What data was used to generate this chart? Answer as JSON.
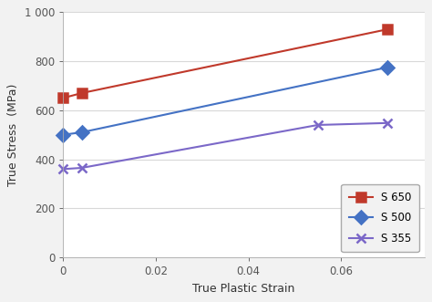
{
  "series": [
    {
      "label": "S 650",
      "color": "#C0392B",
      "marker": "s",
      "x": [
        0,
        0.004,
        0.07
      ],
      "y": [
        650,
        670,
        930
      ]
    },
    {
      "label": "S 500",
      "color": "#4472C4",
      "marker": "D",
      "x": [
        0,
        0.004,
        0.07
      ],
      "y": [
        500,
        510,
        775
      ]
    },
    {
      "label": "S 355",
      "color": "#7B68C8",
      "marker": "x",
      "x": [
        0,
        0.004,
        0.055,
        0.07
      ],
      "y": [
        360,
        365,
        540,
        548
      ]
    }
  ],
  "xlabel": "True Plastic Strain",
  "ylabel": "True Stress  (MPa)",
  "xlim": [
    0,
    0.078
  ],
  "ylim": [
    0,
    1000
  ],
  "yticks": [
    0,
    200,
    400,
    600,
    800,
    1000
  ],
  "ytick_labels": [
    "0",
    "200",
    "400",
    "600",
    "800",
    "1 000"
  ],
  "xticks": [
    0,
    0.02,
    0.04,
    0.06
  ],
  "background_color": "#f2f2f2",
  "plot_bg_color": "#ffffff",
  "grid_color": "#d8d8d8",
  "legend_loc": "lower right",
  "marker_size": 7,
  "linewidth": 1.5
}
